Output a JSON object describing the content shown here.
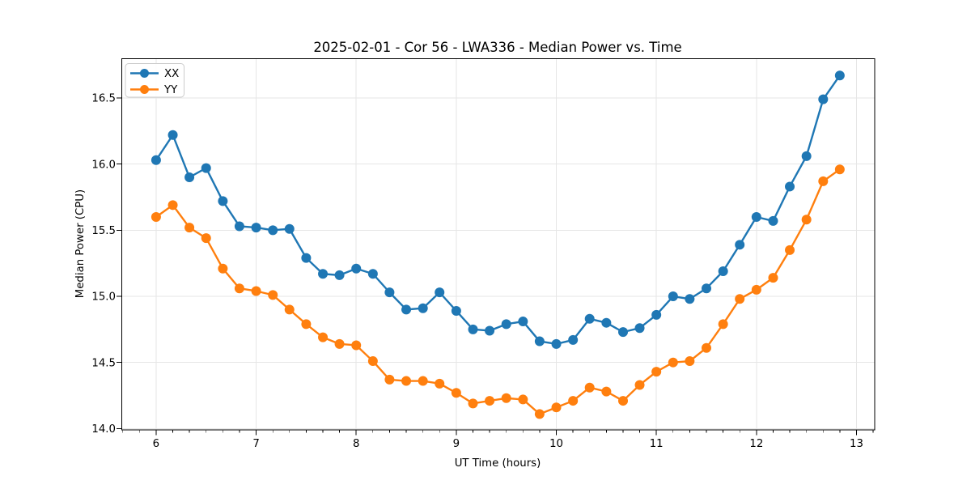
{
  "chart_data": {
    "type": "line",
    "title": "2025-02-01 - Cor 56 - LWA336 - Median Power vs. Time",
    "xlabel": "UT Time (hours)",
    "ylabel": "Median Power (CPU)",
    "xlim": [
      5.657,
      13.182
    ],
    "ylim": [
      13.99,
      16.8
    ],
    "xticks": [
      6,
      7,
      8,
      9,
      10,
      11,
      12,
      13
    ],
    "yticks": [
      14.0,
      14.5,
      15.0,
      15.5,
      16.0,
      16.5
    ],
    "x_minor_ticks_per_hour": 6,
    "grid": true,
    "legend_position": "upper-left",
    "background_color": "#ffffff",
    "grid_color": "#e6e6e6",
    "x": [
      6.0,
      6.167,
      6.333,
      6.5,
      6.667,
      6.833,
      7.0,
      7.167,
      7.333,
      7.5,
      7.667,
      7.833,
      8.0,
      8.167,
      8.333,
      8.5,
      8.667,
      8.833,
      9.0,
      9.167,
      9.333,
      9.5,
      9.667,
      9.833,
      10.0,
      10.167,
      10.333,
      10.5,
      10.667,
      10.833,
      11.0,
      11.167,
      11.333,
      11.5,
      11.667,
      11.833,
      12.0,
      12.167,
      12.333,
      12.5,
      12.667,
      12.833
    ],
    "series": [
      {
        "name": "XX",
        "color": "#1f77b4",
        "values": [
          16.03,
          16.22,
          15.9,
          15.97,
          15.72,
          15.53,
          15.52,
          15.5,
          15.51,
          15.29,
          15.17,
          15.16,
          15.21,
          15.17,
          15.03,
          14.9,
          14.91,
          15.03,
          14.89,
          14.75,
          14.74,
          14.79,
          14.81,
          14.66,
          14.64,
          14.67,
          14.83,
          14.8,
          14.73,
          14.76,
          14.86,
          15.0,
          14.98,
          15.06,
          15.19,
          15.39,
          15.6,
          15.57,
          15.83,
          16.06,
          16.49,
          16.67
        ]
      },
      {
        "name": "YY",
        "color": "#ff7f0e",
        "values": [
          15.6,
          15.69,
          15.52,
          15.44,
          15.21,
          15.06,
          15.04,
          15.01,
          14.9,
          14.79,
          14.69,
          14.64,
          14.63,
          14.51,
          14.37,
          14.36,
          14.36,
          14.34,
          14.27,
          14.19,
          14.21,
          14.23,
          14.22,
          14.11,
          14.16,
          14.21,
          14.31,
          14.28,
          14.21,
          14.33,
          14.43,
          14.5,
          14.51,
          14.61,
          14.79,
          14.98,
          15.05,
          15.14,
          15.35,
          15.58,
          15.87,
          15.96
        ]
      }
    ]
  }
}
